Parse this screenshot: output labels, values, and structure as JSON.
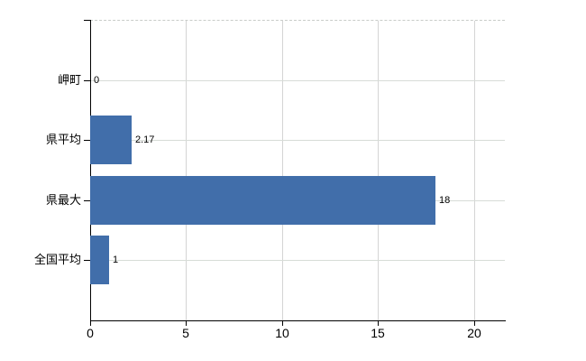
{
  "chart_data": {
    "type": "bar",
    "orientation": "horizontal",
    "title": "",
    "categories": [
      "岬町",
      "県平均",
      "県最大",
      "全国平均"
    ],
    "values": [
      0,
      2.17,
      18,
      1
    ],
    "value_labels": [
      "0",
      "2.17",
      "18",
      "1"
    ],
    "x_tick_labels": [
      "0",
      "5",
      "10",
      "15",
      "20"
    ],
    "x_tick_values": [
      0,
      5,
      10,
      15,
      20
    ],
    "xlim": [
      0,
      21.6
    ],
    "grid": true,
    "legend": false,
    "colors": {
      "bar": "#416eaa",
      "h_gridline": "#d7dcd7",
      "v_gridline": "#d4d4d4",
      "plot_top_border": "#c9ccc9",
      "axis": "#000000",
      "text": "#000000",
      "background": "#ffffff"
    }
  }
}
